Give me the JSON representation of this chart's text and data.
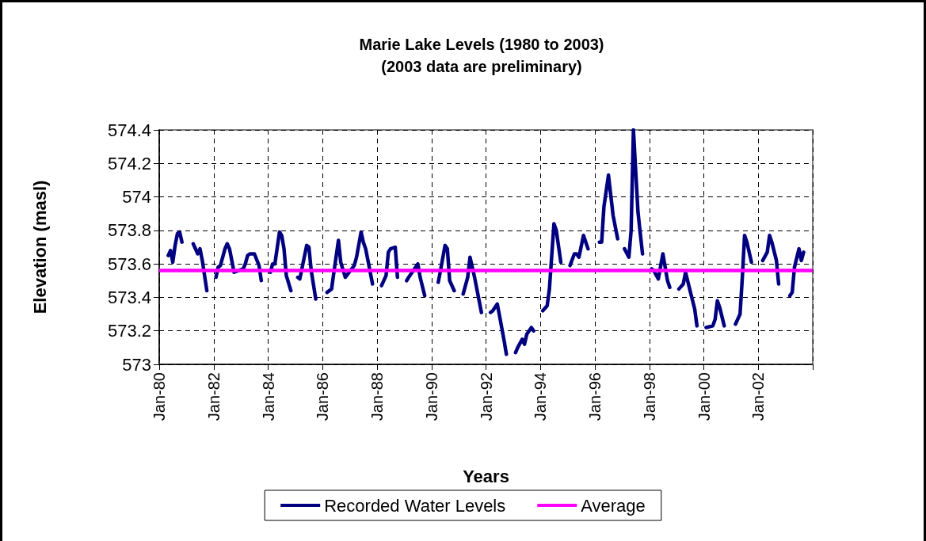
{
  "chart_data": {
    "type": "line",
    "title": "Marie Lake Levels (1980 to 2003)",
    "subtitle": "(2003 data are preliminary)",
    "xlabel": "Years",
    "ylabel": "Elevation (masl)",
    "xlim": [
      "1980-01",
      "2004-01"
    ],
    "xticks": [
      {
        "value": "1980-01",
        "label": "Jan-80"
      },
      {
        "value": "1982-01",
        "label": "Jan-82"
      },
      {
        "value": "1984-01",
        "label": "Jan-84"
      },
      {
        "value": "1986-01",
        "label": "Jan-86"
      },
      {
        "value": "1988-01",
        "label": "Jan-88"
      },
      {
        "value": "1990-01",
        "label": "Jan-90"
      },
      {
        "value": "1992-01",
        "label": "Jan-92"
      },
      {
        "value": "1994-01",
        "label": "Jan-94"
      },
      {
        "value": "1996-01",
        "label": "Jan-96"
      },
      {
        "value": "1998-01",
        "label": "Jan-98"
      },
      {
        "value": "2000-01",
        "label": "Jan-00"
      },
      {
        "value": "2002-01",
        "label": "Jan-02"
      },
      {
        "value": "2004-01",
        "label": null
      }
    ],
    "ylim": [
      573,
      574.4
    ],
    "yticks": [
      573,
      573.2,
      573.4,
      573.6,
      573.8,
      574,
      574.2,
      574.4
    ],
    "grid": true,
    "legend": "bottom",
    "marker": "none",
    "line_style": "solid",
    "ref_lines": [
      {
        "axis": "y",
        "value": 573.56,
        "label": "Average",
        "color": "#ff00ff"
      }
    ],
    "x": [
      "1980-05",
      "1980-06",
      "1980-07",
      "1980-08",
      "1980-09",
      "1980-10",
      "1980-11",
      "1981-01",
      "1981-04",
      "1981-06",
      "1981-07",
      "1981-08",
      "1981-10",
      "1981-12",
      "1982-02",
      "1982-03",
      "1982-04",
      "1982-06",
      "1982-07",
      "1982-08",
      "1982-10",
      "1982-12",
      "1983-02",
      "1983-03",
      "1983-04",
      "1983-05",
      "1983-07",
      "1983-09",
      "1983-10",
      "1983-12",
      "1984-02",
      "1984-03",
      "1984-04",
      "1984-06",
      "1984-07",
      "1984-08",
      "1984-09",
      "1984-11",
      "1985-01",
      "1985-02",
      "1985-03",
      "1985-06",
      "1985-07",
      "1985-08",
      "1985-10",
      "1986-01",
      "1986-03",
      "1986-05",
      "1986-06",
      "1986-08",
      "1986-09",
      "1986-11",
      "1987-03",
      "1987-04",
      "1987-06",
      "1987-07",
      "1987-08",
      "1987-09",
      "1987-11",
      "1988-01",
      "1988-03",
      "1988-05",
      "1988-06",
      "1988-07",
      "1988-09",
      "1988-10",
      "1988-12",
      "1989-02",
      "1989-03",
      "1989-07",
      "1989-08",
      "1989-10",
      "1990-01",
      "1990-04",
      "1990-05",
      "1990-07",
      "1990-08",
      "1990-09",
      "1990-11",
      "1991-01",
      "1991-03",
      "1991-05",
      "1991-06",
      "1991-08",
      "1991-11",
      "1992-01",
      "1992-03",
      "1992-04",
      "1992-06",
      "1992-07",
      "1992-09",
      "1992-10",
      "1992-12",
      "1993-02",
      "1993-03",
      "1993-05",
      "1993-06",
      "1993-07",
      "1993-09",
      "1993-10",
      "1993-12",
      "1994-02",
      "1994-04",
      "1994-05",
      "1994-07",
      "1994-08",
      "1994-10",
      "1994-12",
      "1995-02",
      "1995-04",
      "1995-05",
      "1995-06",
      "1995-08",
      "1995-10",
      "1996-01",
      "1996-03",
      "1996-04",
      "1996-05",
      "1996-07",
      "1996-08",
      "1996-09",
      "1996-11",
      "1997-01",
      "1997-02",
      "1997-04",
      "1997-05",
      "1997-06",
      "1997-08",
      "1997-09",
      "1997-10",
      "1997-12",
      "1998-02",
      "1998-03",
      "1998-05",
      "1998-07",
      "1998-09",
      "1998-10",
      "1998-12",
      "1999-02",
      "1999-04",
      "1999-05",
      "1999-07",
      "1999-09",
      "1999-10",
      "1999-12",
      "2000-02",
      "2000-05",
      "2000-06",
      "2000-07",
      "2000-08",
      "2000-10",
      "2000-12",
      "2001-03",
      "2001-05",
      "2001-06",
      "2001-07",
      "2001-08",
      "2001-10",
      "2001-12",
      "2002-03",
      "2002-05",
      "2002-06",
      "2002-07",
      "2002-09",
      "2002-10",
      "2002-12",
      "2003-03",
      "2003-04",
      "2003-05",
      "2003-07",
      "2003-08",
      "2003-09"
    ],
    "series": [
      {
        "name": "Recorded Water Levels",
        "color": "#000080",
        "values": [
          573.65,
          573.68,
          573.61,
          573.71,
          573.78,
          573.79,
          573.73,
          null,
          573.72,
          573.66,
          573.69,
          573.62,
          573.44,
          null,
          573.52,
          573.58,
          573.59,
          573.69,
          573.72,
          573.69,
          573.55,
          573.56,
          573.57,
          573.6,
          573.65,
          573.66,
          573.66,
          573.59,
          573.5,
          null,
          573.55,
          573.6,
          573.6,
          573.79,
          573.77,
          573.69,
          573.53,
          573.44,
          null,
          573.52,
          573.51,
          573.71,
          573.7,
          573.56,
          573.39,
          null,
          573.43,
          573.45,
          573.55,
          573.74,
          573.61,
          573.52,
          573.59,
          573.64,
          573.79,
          573.73,
          573.69,
          573.62,
          573.48,
          null,
          573.47,
          573.53,
          573.67,
          573.69,
          573.7,
          573.52,
          null,
          573.5,
          573.52,
          573.6,
          573.52,
          573.41,
          null,
          573.49,
          573.56,
          573.71,
          573.69,
          573.5,
          573.44,
          null,
          573.42,
          573.52,
          573.64,
          573.52,
          573.31,
          null,
          573.31,
          573.32,
          573.36,
          573.29,
          573.14,
          573.06,
          null,
          573.07,
          573.1,
          573.15,
          573.12,
          573.18,
          573.22,
          573.2,
          null,
          573.32,
          573.35,
          573.45,
          573.84,
          573.8,
          573.61,
          null,
          573.59,
          573.66,
          573.66,
          573.64,
          573.77,
          573.69,
          null,
          573.73,
          573.73,
          573.94,
          574.13,
          574.01,
          573.89,
          573.75,
          null,
          573.69,
          573.64,
          573.8,
          574.4,
          573.91,
          573.78,
          573.66,
          null,
          573.57,
          573.56,
          573.51,
          573.66,
          573.5,
          573.46,
          null,
          573.45,
          573.48,
          573.55,
          573.44,
          573.33,
          573.23,
          null,
          573.22,
          573.23,
          573.27,
          573.38,
          573.34,
          573.23,
          null,
          573.24,
          573.3,
          573.52,
          573.77,
          573.73,
          573.61,
          null,
          573.62,
          573.67,
          573.77,
          573.73,
          573.62,
          573.48,
          null,
          573.41,
          573.43,
          573.58,
          573.69,
          573.62,
          573.67
        ]
      }
    ]
  }
}
